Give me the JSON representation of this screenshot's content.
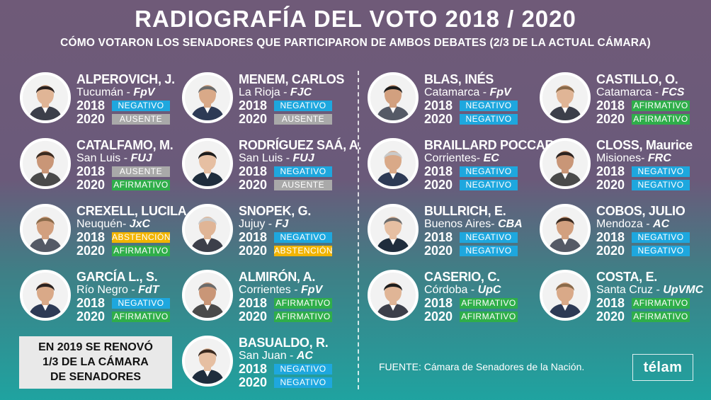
{
  "header": {
    "title": "RADIOGRAFÍA DEL VOTO 2018 / 2020",
    "subtitle": "CÓMO VOTARON LOS SENADORES QUE PARTICIPARON DE AMBOS DEBATES (2/3 DE LA ACTUAL CÁMARA)"
  },
  "colors": {
    "negativo": "#1ea7de",
    "afirmativo": "#2fae4a",
    "ausente": "#a9a9a9",
    "abstencion": "#f2b400"
  },
  "senators": [
    {
      "name": "ALPEROVICH, J.",
      "province": "Tucumán - ",
      "party": "FpV",
      "y2018": "2018",
      "v2018": "NEGATIVO",
      "y2020": "2020",
      "v2020": "AUSENTE"
    },
    {
      "name": "MENEM, CARLOS",
      "province": "La Rioja - ",
      "party": "FJC",
      "y2018": "2018",
      "v2018": "NEGATIVO",
      "y2020": "2020",
      "v2020": "AUSENTE"
    },
    {
      "name": "CATALFAMO, M.",
      "province": "San Luis - ",
      "party": "FUJ",
      "y2018": "2018",
      "v2018": "AUSENTE",
      "y2020": "2020",
      "v2020": "AFIRMATIVO"
    },
    {
      "name": "RODRÍGUEZ SAÁ, A.",
      "province": "San Luis - ",
      "party": "FUJ",
      "y2018": "2018",
      "v2018": "NEGATIVO",
      "y2020": "2020",
      "v2020": "AUSENTE"
    },
    {
      "name": "CREXELL, LUCILA",
      "province": "Neuquén- ",
      "party": "JxC",
      "y2018": "2018",
      "v2018": "ABSTENCIÓN",
      "y2020": "2020",
      "v2020": "AFIRMATIVO"
    },
    {
      "name": "SNOPEK, G.",
      "province": "Jujuy - ",
      "party": "FJ",
      "y2018": "2018",
      "v2018": "NEGATIVO",
      "y2020": "2020",
      "v2020": "ABSTENCIÓN"
    },
    {
      "name": "GARCÍA L., S.",
      "province": "Río Negro - ",
      "party": "FdT",
      "y2018": "2018",
      "v2018": "NEGATIVO",
      "y2020": "2020",
      "v2020": "AFIRMATIVO"
    },
    {
      "name": "ALMIRÓN, A.",
      "province": "Corrientes - ",
      "party": "FpV",
      "y2018": "2018",
      "v2018": "AFIRMATIVO",
      "y2020": "2020",
      "v2020": "AFIRMATIVO"
    },
    {
      "name": "BASUALDO, R.",
      "province": "San Juan - ",
      "party": "AC",
      "y2018": "2018",
      "v2018": "NEGATIVO",
      "y2020": "2020",
      "v2020": "NEGATIVO"
    },
    {
      "name": "BLAS, INÉS",
      "province": "Catamarca - ",
      "party": "FpV",
      "y2018": "2018",
      "v2018": "NEGATIVO",
      "y2020": "2020",
      "v2020": "NEGATIVO"
    },
    {
      "name": "CASTILLO, O.",
      "province": "Catamarca - ",
      "party": "FCS",
      "y2018": "2018",
      "v2018": "AFIRMATIVO",
      "y2020": "2020",
      "v2020": "AFIRMATIVO"
    },
    {
      "name": "BRAILLARD POCCARD",
      "province": "Corrientes- ",
      "party": "EC",
      "y2018": "2018",
      "v2018": "NEGATIVO",
      "y2020": "2020",
      "v2020": "NEGATIVO"
    },
    {
      "name": "CLOSS, Maurice",
      "province": "Misiones- ",
      "party": "FRC",
      "y2018": "2018",
      "v2018": "NEGATIVO",
      "y2020": "2020",
      "v2020": "NEGATIVO"
    },
    {
      "name": "BULLRICH, E.",
      "province": "Buenos Aires- ",
      "party": "CBA",
      "y2018": "2018",
      "v2018": "NEGATIVO",
      "y2020": "2020",
      "v2020": "NEGATIVO"
    },
    {
      "name": "COBOS, JULIO",
      "province": "Mendoza - ",
      "party": "AC",
      "y2018": "2018",
      "v2018": "NEGATIVO",
      "y2020": "2020",
      "v2020": "NEGATIVO"
    },
    {
      "name": "CASERIO, C.",
      "province": "Córdoba - ",
      "party": "UpC",
      "y2018": "2018",
      "v2018": "AFIRMATIVO",
      "y2020": "2020",
      "v2020": "AFIRMATIVO"
    },
    {
      "name": "COSTA, E.",
      "province": "Santa Cruz - ",
      "party": "UpVMC",
      "y2018": "2018",
      "v2018": "AFIRMATIVO",
      "y2020": "2020",
      "v2020": "AFIRMATIVO"
    }
  ],
  "note": {
    "line1": "EN 2019  SE RENOVÓ",
    "line2": "1/3 DE LA CÁMARA",
    "line3": "DE SENADORES"
  },
  "footer": {
    "source": "FUENTE: Cámara de Senadores de la Nación.",
    "logo": "télam"
  }
}
